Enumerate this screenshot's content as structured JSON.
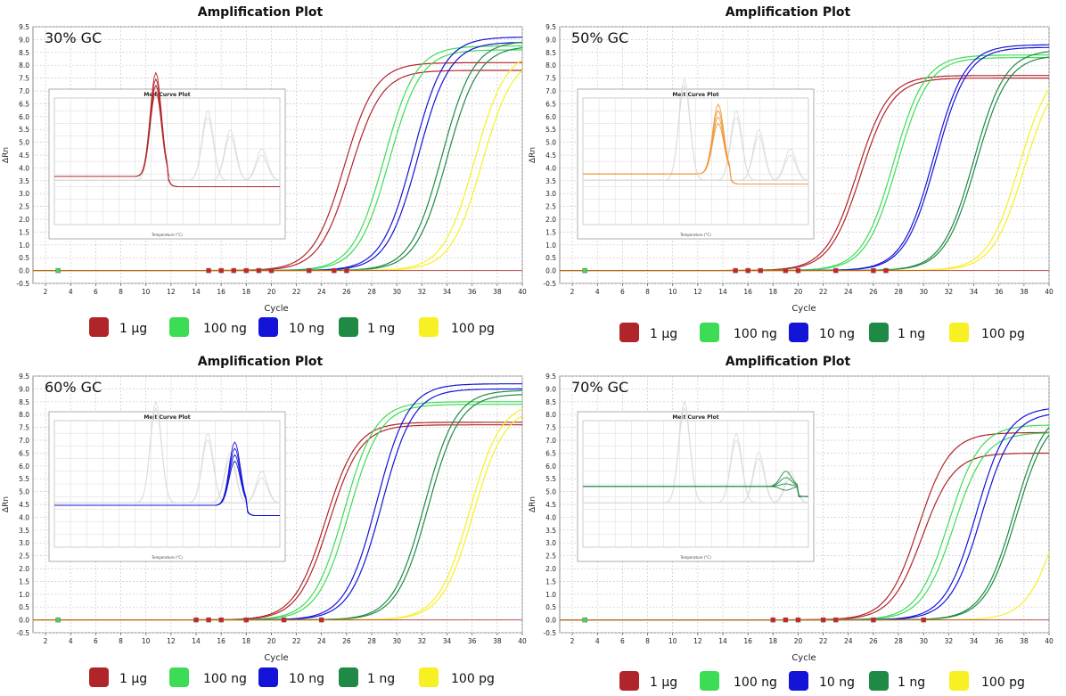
{
  "colors": {
    "1ug": "#b0252a",
    "100ng": "#3ddc55",
    "10ng": "#1414d8",
    "1ng": "#1f8a45",
    "100pg": "#f7f022",
    "orange": "#ef9a3c"
  },
  "legend": [
    {
      "key": "1ug",
      "label": "1 µg"
    },
    {
      "key": "100ng",
      "label": "100 ng"
    },
    {
      "key": "10ng",
      "label": "10 ng"
    },
    {
      "key": "1ng",
      "label": "1 ng"
    },
    {
      "key": "100pg",
      "label": "100 pg"
    }
  ],
  "chart_data": [
    {
      "type": "line",
      "title": "Amplification Plot",
      "panel_label": "30% GC",
      "xlabel": "Cycle",
      "ylabel": "ΔRn",
      "xlim": [
        1,
        40
      ],
      "ylim": [
        -0.5,
        9.5
      ],
      "xticks": [
        2,
        4,
        6,
        8,
        10,
        12,
        14,
        16,
        18,
        20,
        22,
        24,
        26,
        28,
        30,
        32,
        34,
        36,
        38,
        40
      ],
      "yticks": [
        -0.5,
        0.0,
        0.5,
        1.0,
        1.5,
        2.0,
        2.5,
        3.0,
        3.5,
        4.0,
        4.5,
        5.0,
        5.5,
        6.0,
        6.5,
        7.0,
        7.5,
        8.0,
        8.5,
        9.0,
        9.5
      ],
      "series": [
        {
          "name": "1 µg",
          "colorKey": "1ug",
          "curves": [
            {
              "mid": 25.8,
              "plateau": 8.1
            },
            {
              "mid": 26.3,
              "plateau": 7.8
            }
          ]
        },
        {
          "name": "100 ng",
          "colorKey": "100ng",
          "curves": [
            {
              "mid": 29.0,
              "plateau": 8.75
            },
            {
              "mid": 29.4,
              "plateau": 8.6
            }
          ]
        },
        {
          "name": "10 ng",
          "colorKey": "10ng",
          "curves": [
            {
              "mid": 31.3,
              "plateau": 9.1
            },
            {
              "mid": 31.7,
              "plateau": 8.9
            }
          ]
        },
        {
          "name": "1 ng",
          "colorKey": "1ng",
          "curves": [
            {
              "mid": 33.6,
              "plateau": 8.95
            },
            {
              "mid": 34.0,
              "plateau": 8.75
            }
          ]
        },
        {
          "name": "100 pg",
          "colorKey": "100pg",
          "curves": [
            {
              "mid": 36.2,
              "plateau": 8.6
            },
            {
              "mid": 36.8,
              "plateau": 8.4
            }
          ]
        }
      ],
      "inset": {
        "title": "Melt Curve Plot",
        "xlabel": "Temperature (°C)",
        "accentKey": "1ug",
        "baseline": 0.38,
        "peak_pos": 0.45,
        "peak_h": 0.82
      },
      "threshold_markers": [
        3,
        15,
        16,
        17,
        18,
        19,
        20,
        23,
        25,
        26
      ]
    },
    {
      "type": "line",
      "title": "Amplification Plot",
      "panel_label": "50% GC",
      "xlabel": "Cycle",
      "ylabel": "ΔRn",
      "xlim": [
        1,
        40
      ],
      "ylim": [
        -0.5,
        9.5
      ],
      "xticks": [
        2,
        4,
        6,
        8,
        10,
        12,
        14,
        16,
        18,
        20,
        22,
        24,
        26,
        28,
        30,
        32,
        34,
        36,
        38,
        40
      ],
      "yticks": [
        -0.5,
        0.0,
        0.5,
        1.0,
        1.5,
        2.0,
        2.5,
        3.0,
        3.5,
        4.0,
        4.5,
        5.0,
        5.5,
        6.0,
        6.5,
        7.0,
        7.5,
        8.0,
        8.5,
        9.0,
        9.5
      ],
      "series": [
        {
          "name": "1 µg",
          "colorKey": "1ug",
          "curves": [
            {
              "mid": 24.7,
              "plateau": 7.6
            },
            {
              "mid": 25.0,
              "plateau": 7.5
            }
          ]
        },
        {
          "name": "100 ng",
          "colorKey": "100ng",
          "curves": [
            {
              "mid": 27.6,
              "plateau": 8.4
            },
            {
              "mid": 27.9,
              "plateau": 8.3
            }
          ]
        },
        {
          "name": "10 ng",
          "colorKey": "10ng",
          "curves": [
            {
              "mid": 30.8,
              "plateau": 8.8
            },
            {
              "mid": 31.0,
              "plateau": 8.7
            }
          ]
        },
        {
          "name": "1 ng",
          "colorKey": "1ng",
          "curves": [
            {
              "mid": 34.0,
              "plateau": 8.6
            },
            {
              "mid": 34.2,
              "plateau": 8.4
            }
          ]
        },
        {
          "name": "100 pg",
          "colorKey": "100pg",
          "curves": [
            {
              "mid": 37.6,
              "plateau": 8.1
            },
            {
              "mid": 38.0,
              "plateau": 7.9
            }
          ]
        }
      ],
      "inset": {
        "title": "Melt Curve Plot",
        "xlabel": "Temperature (°C)",
        "accentKey": "orange",
        "baseline": 0.4,
        "peak_pos": 0.6,
        "peak_h": 0.55
      },
      "threshold_markers": [
        3,
        15,
        16,
        17,
        19,
        20,
        23,
        26,
        27
      ]
    },
    {
      "type": "line",
      "title": "Amplification Plot",
      "panel_label": "60% GC",
      "xlabel": "Cycle",
      "ylabel": "ΔRn",
      "xlim": [
        1,
        40
      ],
      "ylim": [
        -0.5,
        9.5
      ],
      "xticks": [
        2,
        4,
        6,
        8,
        10,
        12,
        14,
        16,
        18,
        20,
        22,
        24,
        26,
        28,
        30,
        32,
        34,
        36,
        38,
        40
      ],
      "yticks": [
        -0.5,
        0.0,
        0.5,
        1.0,
        1.5,
        2.0,
        2.5,
        3.0,
        3.5,
        4.0,
        4.5,
        5.0,
        5.5,
        6.0,
        6.5,
        7.0,
        7.5,
        8.0,
        8.5,
        9.0,
        9.5
      ],
      "series": [
        {
          "name": "1 µg",
          "colorKey": "1ug",
          "curves": [
            {
              "mid": 24.3,
              "plateau": 7.7
            },
            {
              "mid": 24.6,
              "plateau": 7.6
            }
          ]
        },
        {
          "name": "100 ng",
          "colorKey": "100ng",
          "curves": [
            {
              "mid": 25.8,
              "plateau": 8.5
            },
            {
              "mid": 26.2,
              "plateau": 8.4
            }
          ]
        },
        {
          "name": "10 ng",
          "colorKey": "10ng",
          "curves": [
            {
              "mid": 28.4,
              "plateau": 9.2
            },
            {
              "mid": 28.8,
              "plateau": 9.0
            }
          ]
        },
        {
          "name": "1 ng",
          "colorKey": "1ng",
          "curves": [
            {
              "mid": 32.2,
              "plateau": 8.95
            },
            {
              "mid": 32.5,
              "plateau": 8.8
            }
          ]
        },
        {
          "name": "100 pg",
          "colorKey": "100pg",
          "curves": [
            {
              "mid": 35.8,
              "plateau": 8.5
            },
            {
              "mid": 36.1,
              "plateau": 8.3
            }
          ]
        }
      ],
      "inset": {
        "title": "Melt Curve Plot",
        "xlabel": "Temperature (°C)",
        "accentKey": "10ng",
        "baseline": 0.33,
        "peak_pos": 0.8,
        "peak_h": 0.5
      },
      "threshold_markers": [
        3,
        14,
        15,
        16,
        18,
        21,
        24
      ]
    },
    {
      "type": "line",
      "title": "Amplification Plot",
      "panel_label": "70% GC",
      "xlabel": "Cycle",
      "ylabel": "ΔRn",
      "xlim": [
        1,
        40
      ],
      "ylim": [
        -0.5,
        9.5
      ],
      "xticks": [
        2,
        4,
        6,
        8,
        10,
        12,
        14,
        16,
        18,
        20,
        22,
        24,
        26,
        28,
        30,
        32,
        34,
        36,
        38,
        40
      ],
      "yticks": [
        -0.5,
        0.0,
        0.5,
        1.0,
        1.5,
        2.0,
        2.5,
        3.0,
        3.5,
        4.0,
        4.5,
        5.0,
        5.5,
        6.0,
        6.5,
        7.0,
        7.5,
        8.0,
        8.5,
        9.0,
        9.5
      ],
      "series": [
        {
          "name": "1 µg",
          "colorKey": "1ug",
          "curves": [
            {
              "mid": 29.6,
              "plateau": 7.3
            },
            {
              "mid": 29.9,
              "plateau": 6.5
            }
          ]
        },
        {
          "name": "100 ng",
          "colorKey": "100ng",
          "curves": [
            {
              "mid": 32.0,
              "plateau": 7.6
            },
            {
              "mid": 32.4,
              "plateau": 7.3
            }
          ]
        },
        {
          "name": "10 ng",
          "colorKey": "10ng",
          "curves": [
            {
              "mid": 34.2,
              "plateau": 8.3
            },
            {
              "mid": 34.6,
              "plateau": 8.1
            }
          ]
        },
        {
          "name": "1 ng",
          "colorKey": "1ng",
          "curves": [
            {
              "mid": 37.2,
              "plateau": 8.3
            },
            {
              "mid": 37.4,
              "plateau": 8.1
            }
          ]
        },
        {
          "name": "100 pg",
          "colorKey": "100pg",
          "curves": [
            {
              "mid": 40.8,
              "plateau": 7.6
            }
          ]
        }
      ],
      "inset": {
        "title": "Melt Curve Plot",
        "xlabel": "Temperature (°C)",
        "accentKey": "1ng",
        "baseline": 0.48,
        "peak_pos": 0.9,
        "peak_h": 0.12
      },
      "threshold_markers": [
        3,
        18,
        19,
        20,
        22,
        23,
        26,
        30
      ]
    }
  ]
}
